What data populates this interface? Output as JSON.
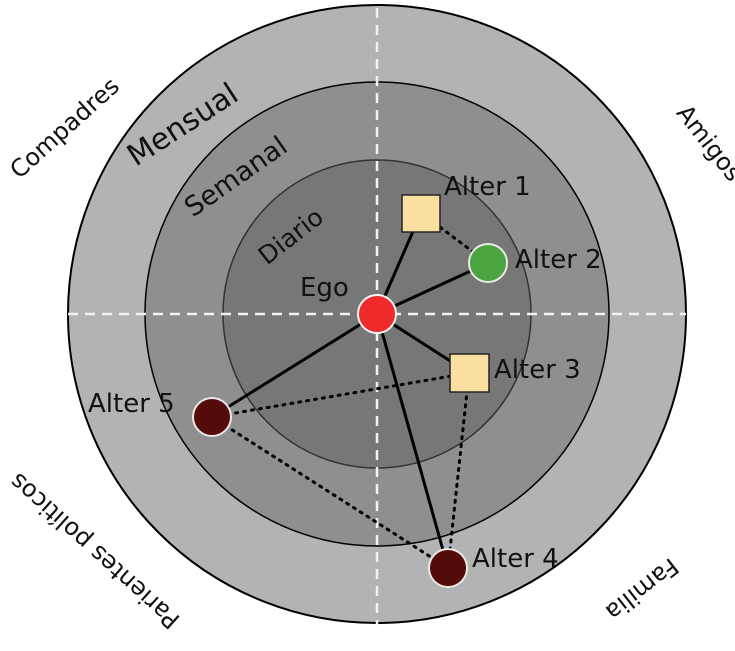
{
  "ring_labels": {
    "monthly": "Mensual",
    "weekly": "Semanal",
    "daily": "Diario"
  },
  "sector_labels": {
    "top_left": "Compadres",
    "top_right": "Amigos",
    "bottom_left": "Parientes políticos",
    "bottom_right": "Familia"
  },
  "nodes": {
    "ego": "Ego",
    "alter1": "Alter 1",
    "alter2": "Alter 2",
    "alter3": "Alter 3",
    "alter4": "Alter 4",
    "alter5": "Alter 5"
  },
  "colors": {
    "outer_ring": "#b3b3b3",
    "middle_ring": "#8f8f8f",
    "inner_ring": "#777777",
    "ego": "#ee2a2a",
    "alter_square": "#fae0a0",
    "alter_green": "#4aa540",
    "alter_dark": "#560b0b",
    "divider": "#f2f2f2"
  },
  "ties": {
    "solid": [
      [
        "ego",
        "alter1"
      ],
      [
        "ego",
        "alter2"
      ],
      [
        "ego",
        "alter3"
      ],
      [
        "ego",
        "alter4"
      ],
      [
        "ego",
        "alter5"
      ]
    ],
    "dotted": [
      [
        "alter1",
        "alter2"
      ],
      [
        "alter5",
        "alter3"
      ],
      [
        "alter5",
        "alter4"
      ],
      [
        "alter3",
        "alter4"
      ]
    ]
  }
}
